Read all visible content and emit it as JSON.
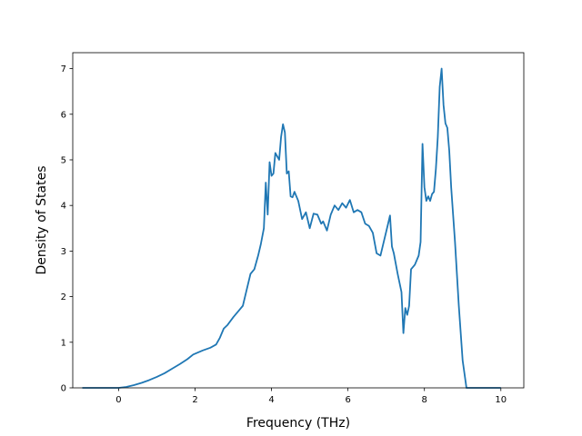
{
  "chart_data": {
    "type": "line",
    "title": "",
    "xlabel": "Frequency (THz)",
    "ylabel": "Density of States",
    "xlim": [
      -1.2,
      10.6
    ],
    "ylim": [
      0,
      7.35
    ],
    "xticks": [
      0,
      2,
      4,
      6,
      8,
      10
    ],
    "yticks": [
      0,
      1,
      2,
      3,
      4,
      5,
      6,
      7
    ],
    "grid": false,
    "legend": "none",
    "series": [
      {
        "color": "#1f77b4",
        "x": [
          -0.95,
          -0.5,
          0,
          0.2,
          0.4,
          0.6,
          0.8,
          1.0,
          1.2,
          1.4,
          1.6,
          1.8,
          1.95,
          2.2,
          2.4,
          2.55,
          2.65,
          2.75,
          2.85,
          3.0,
          3.15,
          3.25,
          3.35,
          3.45,
          3.55,
          3.65,
          3.72,
          3.8,
          3.85,
          3.9,
          3.95,
          4.0,
          4.05,
          4.1,
          4.2,
          4.25,
          4.3,
          4.35,
          4.4,
          4.45,
          4.5,
          4.55,
          4.6,
          4.7,
          4.8,
          4.9,
          5.0,
          5.1,
          5.2,
          5.3,
          5.35,
          5.45,
          5.55,
          5.65,
          5.75,
          5.85,
          5.95,
          6.05,
          6.15,
          6.25,
          6.35,
          6.45,
          6.55,
          6.65,
          6.75,
          6.85,
          6.95,
          7.05,
          7.1,
          7.15,
          7.2,
          7.3,
          7.4,
          7.45,
          7.5,
          7.55,
          7.6,
          7.65,
          7.75,
          7.85,
          7.9,
          7.95,
          8.0,
          8.05,
          8.1,
          8.15,
          8.2,
          8.25,
          8.3,
          8.35,
          8.4,
          8.45,
          8.5,
          8.55,
          8.6,
          8.65,
          8.7,
          8.75,
          8.8,
          8.9,
          9.0,
          9.1,
          9.15,
          9.2,
          10.0
        ],
        "y": [
          0,
          0,
          0,
          0.02,
          0.06,
          0.11,
          0.17,
          0.24,
          0.32,
          0.42,
          0.52,
          0.63,
          0.73,
          0.82,
          0.88,
          0.95,
          1.1,
          1.3,
          1.38,
          1.55,
          1.7,
          1.8,
          2.15,
          2.5,
          2.6,
          2.9,
          3.15,
          3.5,
          4.5,
          3.8,
          4.95,
          4.65,
          4.7,
          5.15,
          5.0,
          5.5,
          5.78,
          5.6,
          4.7,
          4.75,
          4.2,
          4.18,
          4.3,
          4.1,
          3.7,
          3.85,
          3.5,
          3.82,
          3.8,
          3.6,
          3.65,
          3.45,
          3.8,
          4.0,
          3.9,
          4.05,
          3.95,
          4.12,
          3.85,
          3.9,
          3.85,
          3.6,
          3.55,
          3.4,
          2.95,
          2.9,
          3.25,
          3.6,
          3.78,
          3.1,
          2.95,
          2.5,
          2.1,
          1.2,
          1.75,
          1.6,
          1.8,
          2.6,
          2.7,
          2.9,
          3.2,
          5.35,
          4.4,
          4.1,
          4.2,
          4.1,
          4.25,
          4.3,
          4.8,
          5.5,
          6.6,
          7.0,
          6.2,
          5.8,
          5.7,
          5.2,
          4.4,
          3.8,
          3.2,
          1.8,
          0.6,
          0,
          0,
          0,
          0
        ]
      }
    ]
  }
}
